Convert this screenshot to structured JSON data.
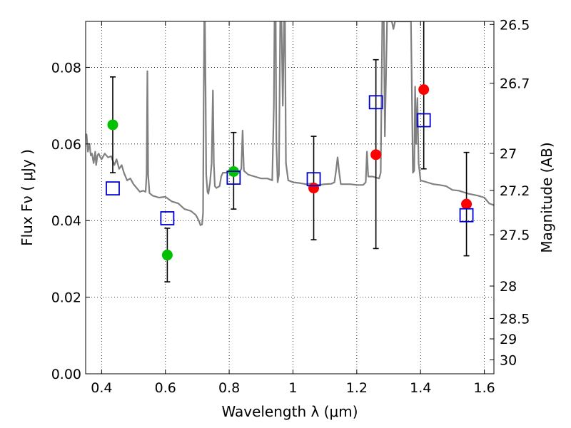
{
  "chart_data": {
    "type": "scatter",
    "title": "",
    "xlabel": "Wavelength  λ (μm)",
    "ylabel_left": "Flux  Fν  ( μJy )",
    "ylabel_right": "Magnitude (AB)",
    "xlim": [
      0.35,
      1.63
    ],
    "ylim": [
      0.0,
      0.092
    ],
    "grid": true,
    "legend": "none",
    "x_ticks": [
      0.4,
      0.6,
      0.8,
      1.0,
      1.2,
      1.4,
      1.6
    ],
    "x_tick_labels": [
      "0.4",
      "0.6",
      "0.8",
      "1",
      "1.2",
      "1.4",
      "1.6"
    ],
    "y_ticks": [
      0.0,
      0.02,
      0.04,
      0.06,
      0.08
    ],
    "y_tick_labels": [
      "0.00",
      "0.02",
      "0.04",
      "0.06",
      "0.08"
    ],
    "mag_ticks": [
      26.5,
      26.7,
      27.0,
      27.2,
      27.5,
      28.0,
      28.5,
      29.0,
      30.0
    ],
    "mag_tick_labels": [
      "26.5",
      "26.7",
      "27",
      "27.2",
      "27.5",
      "28",
      "28.5",
      "29",
      "30"
    ],
    "colors": {
      "model": "#808080",
      "green": "#00c000",
      "red": "#ff0000",
      "model_points": "#0000cc",
      "errorbar": "#000000"
    },
    "series": [
      {
        "marker": "circle",
        "color": "green",
        "points": [
          {
            "x": 0.435,
            "y": 0.065,
            "yerr": [
              0.0525,
              0.0775
            ]
          },
          {
            "x": 0.606,
            "y": 0.031,
            "yerr": [
              0.024,
              0.038
            ]
          },
          {
            "x": 0.814,
            "y": 0.0528,
            "yerr": [
              0.043,
              0.063
            ]
          }
        ]
      },
      {
        "marker": "circle",
        "color": "red",
        "points": [
          {
            "x": 1.065,
            "y": 0.0485,
            "yerr": [
              0.035,
              0.062
            ]
          },
          {
            "x": 1.26,
            "y": 0.0572,
            "yerr": [
              0.0327,
              0.082
            ]
          },
          {
            "x": 1.41,
            "y": 0.0742,
            "yerr": [
              0.0535,
              0.095
            ]
          },
          {
            "x": 1.544,
            "y": 0.0443,
            "yerr": [
              0.0308,
              0.0578
            ]
          }
        ]
      },
      {
        "marker": "square",
        "color": "model_points",
        "points": [
          {
            "x": 0.435,
            "y": 0.0484
          },
          {
            "x": 0.606,
            "y": 0.0406
          },
          {
            "x": 0.814,
            "y": 0.0512
          },
          {
            "x": 1.065,
            "y": 0.0508
          },
          {
            "x": 1.26,
            "y": 0.0709
          },
          {
            "x": 1.41,
            "y": 0.0662
          },
          {
            "x": 1.544,
            "y": 0.0414
          }
        ]
      }
    ],
    "model_spectrum": [
      [
        0.35,
        0.062
      ],
      [
        0.353,
        0.0625
      ],
      [
        0.357,
        0.058
      ],
      [
        0.362,
        0.06
      ],
      [
        0.366,
        0.057
      ],
      [
        0.37,
        0.0575
      ],
      [
        0.375,
        0.055
      ],
      [
        0.38,
        0.058
      ],
      [
        0.383,
        0.0545
      ],
      [
        0.387,
        0.057
      ],
      [
        0.391,
        0.0575
      ],
      [
        0.396,
        0.0565
      ],
      [
        0.4,
        0.056
      ],
      [
        0.41,
        0.0575
      ],
      [
        0.42,
        0.0565
      ],
      [
        0.43,
        0.0568
      ],
      [
        0.44,
        0.0545
      ],
      [
        0.447,
        0.056
      ],
      [
        0.455,
        0.0535
      ],
      [
        0.463,
        0.0545
      ],
      [
        0.47,
        0.0525
      ],
      [
        0.48,
        0.0505
      ],
      [
        0.49,
        0.051
      ],
      [
        0.5,
        0.0495
      ],
      [
        0.52,
        0.0475
      ],
      [
        0.53,
        0.0478
      ],
      [
        0.538,
        0.0475
      ],
      [
        0.541,
        0.052
      ],
      [
        0.5435,
        0.079
      ],
      [
        0.546,
        0.052
      ],
      [
        0.55,
        0.0472
      ],
      [
        0.56,
        0.0465
      ],
      [
        0.58,
        0.046
      ],
      [
        0.6,
        0.0462
      ],
      [
        0.62,
        0.045
      ],
      [
        0.64,
        0.0445
      ],
      [
        0.66,
        0.043
      ],
      [
        0.68,
        0.0425
      ],
      [
        0.695,
        0.0415
      ],
      [
        0.705,
        0.04
      ],
      [
        0.71,
        0.0388
      ],
      [
        0.715,
        0.039
      ],
      [
        0.718,
        0.042
      ],
      [
        0.72,
        0.07
      ],
      [
        0.722,
        0.092
      ],
      [
        0.724,
        0.092
      ],
      [
        0.726,
        0.075
      ],
      [
        0.728,
        0.052
      ],
      [
        0.732,
        0.0475
      ],
      [
        0.735,
        0.047
      ],
      [
        0.74,
        0.05
      ],
      [
        0.745,
        0.055
      ],
      [
        0.749,
        0.074
      ],
      [
        0.752,
        0.055
      ],
      [
        0.755,
        0.049
      ],
      [
        0.76,
        0.0485
      ],
      [
        0.77,
        0.049
      ],
      [
        0.775,
        0.0515
      ],
      [
        0.78,
        0.0525
      ],
      [
        0.79,
        0.0525
      ],
      [
        0.8,
        0.053
      ],
      [
        0.81,
        0.0535
      ],
      [
        0.82,
        0.0535
      ],
      [
        0.83,
        0.0525
      ],
      [
        0.838,
        0.0535
      ],
      [
        0.842,
        0.0635
      ],
      [
        0.846,
        0.053
      ],
      [
        0.86,
        0.052
      ],
      [
        0.88,
        0.0515
      ],
      [
        0.9,
        0.051
      ],
      [
        0.92,
        0.051
      ],
      [
        0.935,
        0.0505
      ],
      [
        0.94,
        0.07
      ],
      [
        0.942,
        0.092
      ],
      [
        0.946,
        0.092
      ],
      [
        0.948,
        0.06
      ],
      [
        0.952,
        0.05
      ],
      [
        0.956,
        0.052
      ],
      [
        0.96,
        0.092
      ],
      [
        0.964,
        0.092
      ],
      [
        0.968,
        0.07
      ],
      [
        0.972,
        0.092
      ],
      [
        0.975,
        0.092
      ],
      [
        0.978,
        0.055
      ],
      [
        0.985,
        0.0505
      ],
      [
        1.0,
        0.05
      ],
      [
        1.02,
        0.0498
      ],
      [
        1.04,
        0.0495
      ],
      [
        1.06,
        0.0497
      ],
      [
        1.08,
        0.0493
      ],
      [
        1.1,
        0.0495
      ],
      [
        1.12,
        0.0496
      ],
      [
        1.13,
        0.05
      ],
      [
        1.135,
        0.053
      ],
      [
        1.14,
        0.0565
      ],
      [
        1.145,
        0.0525
      ],
      [
        1.15,
        0.0495
      ],
      [
        1.18,
        0.0495
      ],
      [
        1.2,
        0.0493
      ],
      [
        1.22,
        0.0493
      ],
      [
        1.228,
        0.05
      ],
      [
        1.232,
        0.058
      ],
      [
        1.236,
        0.0515
      ],
      [
        1.25,
        0.0515
      ],
      [
        1.27,
        0.051
      ],
      [
        1.275,
        0.0525
      ],
      [
        1.28,
        0.092
      ],
      [
        1.285,
        0.092
      ],
      [
        1.288,
        0.062
      ],
      [
        1.295,
        0.092
      ],
      [
        1.3,
        0.092
      ],
      [
        1.31,
        0.092
      ],
      [
        1.315,
        0.09
      ],
      [
        1.32,
        0.092
      ],
      [
        1.33,
        0.092
      ],
      [
        1.35,
        0.092
      ],
      [
        1.37,
        0.092
      ],
      [
        1.376,
        0.0525
      ],
      [
        1.38,
        0.053
      ],
      [
        1.383,
        0.075
      ],
      [
        1.386,
        0.06
      ],
      [
        1.39,
        0.072
      ],
      [
        1.394,
        0.055
      ],
      [
        1.4,
        0.0505
      ],
      [
        1.42,
        0.05
      ],
      [
        1.44,
        0.0495
      ],
      [
        1.46,
        0.0493
      ],
      [
        1.48,
        0.049
      ],
      [
        1.5,
        0.048
      ],
      [
        1.52,
        0.0478
      ],
      [
        1.55,
        0.047
      ],
      [
        1.58,
        0.0465
      ],
      [
        1.6,
        0.046
      ],
      [
        1.615,
        0.0445
      ],
      [
        1.63,
        0.044
      ]
    ]
  }
}
